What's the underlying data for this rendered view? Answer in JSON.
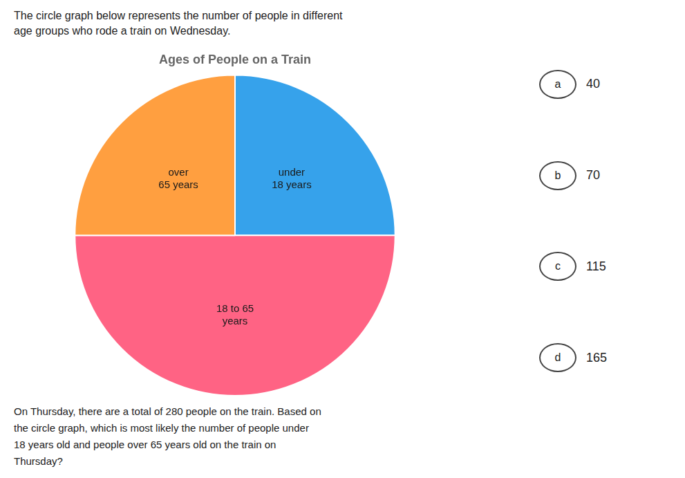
{
  "chart_data": {
    "type": "pie",
    "title": "Ages of People on a Train",
    "subtitle": [
      "The circle graph below represents the number of people in different",
      "age groups who rode a train on Wednesday."
    ],
    "categories": [
      "under\n18 years",
      "18 to 65\nyears",
      "over\n65 years"
    ],
    "values": [
      25,
      50,
      25
    ],
    "annotations": {
      "question": [
        "On Thursday, there are a total of 280 people on the train. Based on",
        "the circle graph, which is most likely the number of people under",
        "18 years old and people over 65 years old on the train on",
        "Thursday?"
      ],
      "choices": [
        {
          "label": "a",
          "value": 40
        },
        {
          "label": "b",
          "value": 70
        },
        {
          "label": "c",
          "value": 115
        },
        {
          "label": "d",
          "value": 165
        }
      ]
    }
  }
}
